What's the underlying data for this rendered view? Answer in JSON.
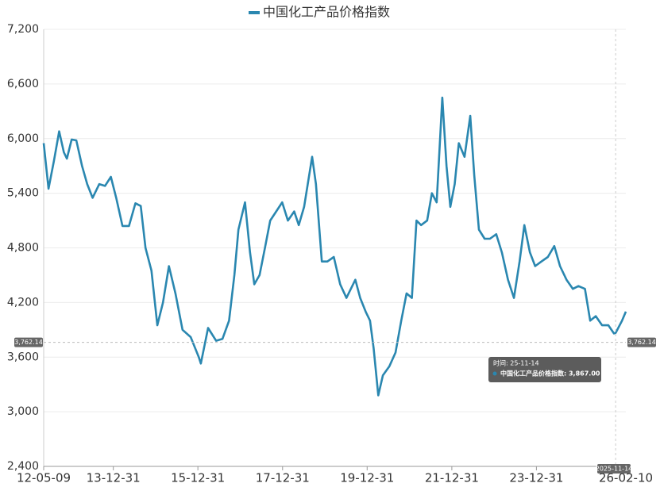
{
  "chart_data": {
    "type": "line",
    "series": [
      {
        "name": "中国化工产品价格指数",
        "color": "#2a87b0",
        "x": [
          "12-05-09",
          "12-06-20",
          "12-08-05",
          "12-09-20",
          "12-10-30",
          "12-11-25",
          "13-01-05",
          "13-02-15",
          "13-04-05",
          "13-05-20",
          "13-07-05",
          "13-09-01",
          "13-10-20",
          "13-12-10",
          "14-01-25",
          "14-03-20",
          "14-05-15",
          "14-07-10",
          "14-08-25",
          "14-10-05",
          "14-11-25",
          "15-01-15",
          "15-03-05",
          "15-04-25",
          "15-06-20",
          "15-08-20",
          "15-10-30",
          "16-01-08",
          "16-01-26",
          "16-03-28",
          "16-06-05",
          "16-07-30",
          "16-09-25",
          "16-11-10",
          "16-12-15",
          "17-02-10",
          "17-03-25",
          "17-05-01",
          "17-06-15",
          "17-08-01",
          "17-09-15",
          "17-12-28",
          "18-02-15",
          "18-04-10",
          "18-05-20",
          "18-07-05",
          "18-09-12",
          "18-10-15",
          "18-12-05",
          "19-01-22",
          "19-03-18",
          "19-05-12",
          "19-07-05",
          "19-09-20",
          "19-11-01",
          "19-12-18",
          "20-01-25",
          "20-02-25",
          "20-04-05",
          "20-05-15",
          "20-07-10",
          "20-09-01",
          "20-10-20",
          "20-12-05",
          "21-01-20",
          "21-03-01",
          "21-04-10",
          "21-06-01",
          "21-07-12",
          "21-08-22",
          "21-10-10",
          "21-11-15",
          "21-12-18",
          "22-01-25",
          "22-03-01",
          "22-04-20",
          "22-06-08",
          "22-07-12",
          "22-08-22",
          "22-10-10",
          "22-11-25",
          "23-01-18",
          "23-03-08",
          "23-04-30",
          "23-06-20",
          "23-08-08",
          "23-09-18",
          "23-11-05",
          "23-12-20",
          "24-02-12",
          "24-04-08",
          "24-06-02",
          "24-07-22",
          "24-09-16",
          "24-11-10",
          "24-12-28",
          "25-02-22",
          "25-04-08",
          "25-05-26",
          "25-07-20",
          "25-09-12",
          "25-10-30",
          "25-11-14",
          "26-01-08",
          "26-02-10"
        ],
        "values": [
          5950,
          5450,
          5750,
          6080,
          5850,
          5780,
          5990,
          5980,
          5700,
          5500,
          5350,
          5500,
          5480,
          5580,
          5350,
          5040,
          5040,
          5290,
          5260,
          4800,
          4550,
          3950,
          4200,
          4600,
          4300,
          3900,
          3820,
          3600,
          3530,
          3920,
          3780,
          3800,
          4000,
          4500,
          5000,
          5300,
          4750,
          4400,
          4500,
          4800,
          5100,
          5300,
          5100,
          5200,
          5050,
          5250,
          5800,
          5500,
          4650,
          4650,
          4700,
          4400,
          4250,
          4450,
          4250,
          4100,
          4000,
          3700,
          3180,
          3400,
          3500,
          3650,
          4000,
          4300,
          4250,
          5100,
          5050,
          5100,
          5400,
          5300,
          6450,
          5700,
          5250,
          5500,
          5950,
          5800,
          6250,
          5600,
          5000,
          4900,
          4900,
          4950,
          4750,
          4450,
          4250,
          4650,
          5050,
          4750,
          4600,
          4650,
          4700,
          4820,
          4600,
          4450,
          4350,
          4380,
          4350,
          4000,
          4050,
          3950,
          3950,
          3860,
          3867,
          4000,
          4100
        ]
      }
    ],
    "xlim": [
      "12-05-09",
      "26-02-10"
    ],
    "xticks": [
      "12-05-09",
      "13-12-31",
      "15-12-31",
      "17-12-31",
      "19-12-31",
      "21-12-31",
      "23-12-31",
      "26-02-10"
    ],
    "ylim": [
      2400,
      7200
    ],
    "yticks": [
      {
        "value": 2400,
        "label": "2,400"
      },
      {
        "value": 3000,
        "label": "3,000"
      },
      {
        "value": 3600,
        "label": "3,600"
      },
      {
        "value": 4200,
        "label": "4,200"
      },
      {
        "value": 4800,
        "label": "4,800"
      },
      {
        "value": 5400,
        "label": "5,400"
      },
      {
        "value": 6000,
        "label": "6,000"
      },
      {
        "value": 6600,
        "label": "6,600"
      },
      {
        "value": 7200,
        "label": "7,200"
      }
    ],
    "grid": true,
    "legend": "top",
    "crosshair": {
      "y": 3762.14,
      "y_label": "3,762.14",
      "x": "25-11-14",
      "x_label": "2025-11-14"
    },
    "tooltip": {
      "time": "时间: 25-11-14",
      "value": 3867,
      "value_label": "中国化工产品价格指数: 3,867.00"
    }
  }
}
